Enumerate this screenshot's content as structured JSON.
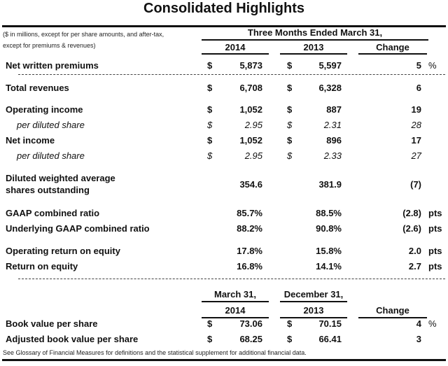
{
  "title": "Consolidated Highlights",
  "note": [
    "($ in millions, except for per share amounts, and after-tax,",
    "except for premiums & revenues)"
  ],
  "period_header": "Three Months Ended March 31,",
  "columns": {
    "col1": "2014",
    "col2": "2013",
    "change": "Change"
  },
  "rows": [
    {
      "label": "Net written premiums",
      "d1": "$",
      "v1": "5,873",
      "d2": "$",
      "v2": "5,597",
      "change": "5",
      "unit": "%"
    },
    {
      "label": "Total revenues",
      "d1": "$",
      "v1": "6,708",
      "d2": "$",
      "v2": "6,328",
      "change": "6",
      "unit": ""
    },
    {
      "label": "Operating income",
      "d1": "$",
      "v1": "1,052",
      "d2": "$",
      "v2": "887",
      "change": "19",
      "unit": ""
    },
    {
      "label": "per diluted share",
      "d1": "$",
      "v1": "2.95",
      "d2": "$",
      "v2": "2.31",
      "change": "28",
      "unit": ""
    },
    {
      "label": "Net income",
      "d1": "$",
      "v1": "1,052",
      "d2": "$",
      "v2": "896",
      "change": "17",
      "unit": ""
    },
    {
      "label": "per diluted share",
      "d1": "$",
      "v1": "2.95",
      "d2": "$",
      "v2": "2.33",
      "change": "27",
      "unit": ""
    },
    {
      "label": "Diluted weighted average",
      "label2": "shares outstanding",
      "d1": "",
      "v1": "354.6",
      "d2": "",
      "v2": "381.9",
      "change": "(7)",
      "unit": ""
    },
    {
      "label": "GAAP combined ratio",
      "d1": "",
      "v1": "85.7%",
      "d2": "",
      "v2": "88.5%",
      "change": "(2.8)",
      "unit": "pts"
    },
    {
      "label": "Underlying GAAP combined ratio",
      "d1": "",
      "v1": "88.2%",
      "d2": "",
      "v2": "90.8%",
      "change": "(2.6)",
      "unit": "pts"
    },
    {
      "label": "Operating return on equity",
      "d1": "",
      "v1": "17.8%",
      "d2": "",
      "v2": "15.8%",
      "change": "2.0",
      "unit": "pts"
    },
    {
      "label": "Return on equity",
      "d1": "",
      "v1": "16.8%",
      "d2": "",
      "v2": "14.1%",
      "change": "2.7",
      "unit": "pts"
    }
  ],
  "bv_columns": {
    "col1_top": "March 31,",
    "col1": "2014",
    "col2_top": "December 31,",
    "col2": "2013",
    "change": "Change"
  },
  "bv_rows": [
    {
      "label": "Book value per share",
      "d1": "$",
      "v1": "73.06",
      "d2": "$",
      "v2": "70.15",
      "change": "4",
      "unit": "%"
    },
    {
      "label": "Adjusted book value per share",
      "d1": "$",
      "v1": "68.25",
      "d2": "$",
      "v2": "66.41",
      "change": "3",
      "unit": ""
    }
  ],
  "footnote": "See Glossary of Financial Measures for definitions and the statistical supplement for additional financial data."
}
